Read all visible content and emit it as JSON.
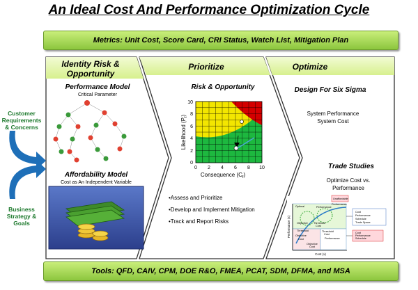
{
  "title": "An Ideal Cost And Performance Optimization Cycle",
  "metrics_bar": "Metrics: Unit Cost, Score Card, CRI Status, Watch List, Mitigation Plan",
  "tools_bar": "Tools: QFD, CAIV, CPM, DOE R&O, FMEA, PCAT, SDM, DFMA, and MSA",
  "left_inputs": {
    "customer": [
      "Customer",
      "Requirements",
      "& Concerns"
    ],
    "business": [
      "Business",
      "Strategy &",
      "Goals"
    ]
  },
  "phases": [
    {
      "header": [
        "Identity Risk &",
        "Opportunity"
      ]
    },
    {
      "header": [
        "Prioritize"
      ]
    },
    {
      "header": [
        "Optimize"
      ]
    }
  ],
  "performance_model": {
    "title": "Performance Model",
    "subtitle": "Critical Parameter"
  },
  "affordability_model": {
    "title": "Affordability Model",
    "subtitle": "Cost as An Independent Variable"
  },
  "risk_opportunity": {
    "title": "Risk & Opportunity",
    "ylabel": "Likelihood (P",
    "ylabel_sub": "f",
    "xlabel": "Consequence (C",
    "xlabel_sub": "f",
    "x_ticks": [
      "0",
      "2",
      "4",
      "6",
      "8",
      "10"
    ],
    "y_ticks": [
      "0",
      "2",
      "4",
      "6",
      "8",
      "10"
    ],
    "bullets": [
      "•Assess and Prioritize",
      "•Develop and Implement Mitigation",
      "•Track and Report Risks"
    ]
  },
  "optimize": {
    "dfss_title": "Design For Six Sigma",
    "dfss_lines": [
      "System Performance",
      "System Cost"
    ],
    "trade_title": "Trade Studies",
    "trade_lines": [
      "Optimize Cost vs.",
      "Performance"
    ]
  },
  "trade_chart": {
    "ylabel": "Performance (x)",
    "xlabel": "Cost (x)",
    "labels": [
      "Optimal",
      "Performance",
      "Threshold",
      "Cost",
      "Objective",
      "Cost",
      "Threshold",
      "Cost",
      "Performance",
      "Objective",
      "Cost",
      "Performance",
      "Schedule",
      "Trade Space",
      "Cost",
      "Performance",
      "Schedule",
      "Threshold",
      "Cost",
      "Objective",
      "Unaffordable",
      "Performance"
    ]
  },
  "colors": {
    "green_bar": "#8cc63e",
    "arrow_green": "#e2f6a8",
    "risk_red": "#d40000",
    "risk_yellow": "#f3e600",
    "risk_green": "#1db83f"
  }
}
